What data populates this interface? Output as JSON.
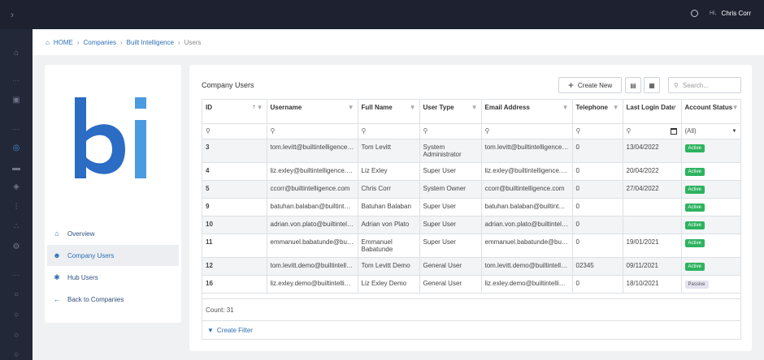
{
  "topbar": {
    "greeting": "Hi,",
    "user_name": "Chris Corr"
  },
  "breadcrumb": {
    "home": "HOME",
    "companies": "Companies",
    "company": "Built Intelligence",
    "current": "Users"
  },
  "company": {
    "logo_text": "bi",
    "logo_color": "#2b6cc4",
    "logo_accent": "#4b9be0"
  },
  "menu": [
    {
      "label": "Overview",
      "icon": "home-icon"
    },
    {
      "label": "Company Users",
      "icon": "users-icon"
    },
    {
      "label": "Hub Users",
      "icon": "hub-icon"
    },
    {
      "label": "Back to Companies",
      "icon": "arrow-left-icon"
    }
  ],
  "main": {
    "title": "Company Users",
    "create_label": "Create New",
    "search_placeholder": "Search...",
    "count_label": "Count: 31",
    "create_filter_label": "Create Filter",
    "status_filter": "(All)"
  },
  "columns": [
    "ID",
    "Username",
    "Full Name",
    "User Type",
    "Email Address",
    "Telephone",
    "Last Login Date",
    "Account Status"
  ],
  "rows": [
    {
      "id": "3",
      "username": "tom.levitt@builtintelligence.com",
      "full_name": "Tom Levitt",
      "user_type": "System Administrator",
      "email": "tom.levitt@builtintelligence.com",
      "telephone": "0",
      "last_login": "13/04/2022",
      "status": "Active"
    },
    {
      "id": "4",
      "username": "liz.exley@builtintelligence.com",
      "full_name": "Liz Exley",
      "user_type": "Super User",
      "email": "liz.exley@builtintelligence.com",
      "telephone": "0",
      "last_login": "20/04/2022",
      "status": "Active"
    },
    {
      "id": "5",
      "username": "ccorr@builtintelligence.com",
      "full_name": "Chris Corr",
      "user_type": "System Owner",
      "email": "ccorr@builtintelligence.com",
      "telephone": "0",
      "last_login": "27/04/2022",
      "status": "Active"
    },
    {
      "id": "9",
      "username": "batuhan.balaban@builtintelligence.com",
      "full_name": "Batuhan Balaban",
      "user_type": "Super User",
      "email": "batuhan.balaban@builtintelligence.com",
      "telephone": "0",
      "last_login": "",
      "status": "Active"
    },
    {
      "id": "10",
      "username": "adrian.von.plato@builtintelligence.com",
      "full_name": "Adrian von Plato",
      "user_type": "Super User",
      "email": "adrian.von.plato@builtintelligence.com",
      "telephone": "0",
      "last_login": "",
      "status": "Active"
    },
    {
      "id": "11",
      "username": "emmanuel.babatunde@builtintelligence.com",
      "full_name": "Emmanuel Babatunde",
      "user_type": "Super User",
      "email": "emmanuel.babatunde@builtintelligence.com",
      "telephone": "0",
      "last_login": "19/01/2021",
      "status": "Active"
    },
    {
      "id": "12",
      "username": "tom.levitt.demo@builtintelligence.com",
      "full_name": "Tom Levitt Demo",
      "user_type": "General User",
      "email": "tom.levitt.demo@builtintelligence.com",
      "telephone": "02345",
      "last_login": "09/11/2021",
      "status": "Active"
    },
    {
      "id": "16",
      "username": "liz.exley.demo@builtintelligence.com",
      "full_name": "Liz Exley Demo",
      "user_type": "General User",
      "email": "liz.exley.demo@builtintelligence.com",
      "telephone": "0",
      "last_login": "18/10/2021",
      "status": "Passive"
    }
  ],
  "colors": {
    "topbar": "#1e2230",
    "sidenav": "#232838",
    "link": "#2e6fb3",
    "active_badge": "#2db35f"
  }
}
